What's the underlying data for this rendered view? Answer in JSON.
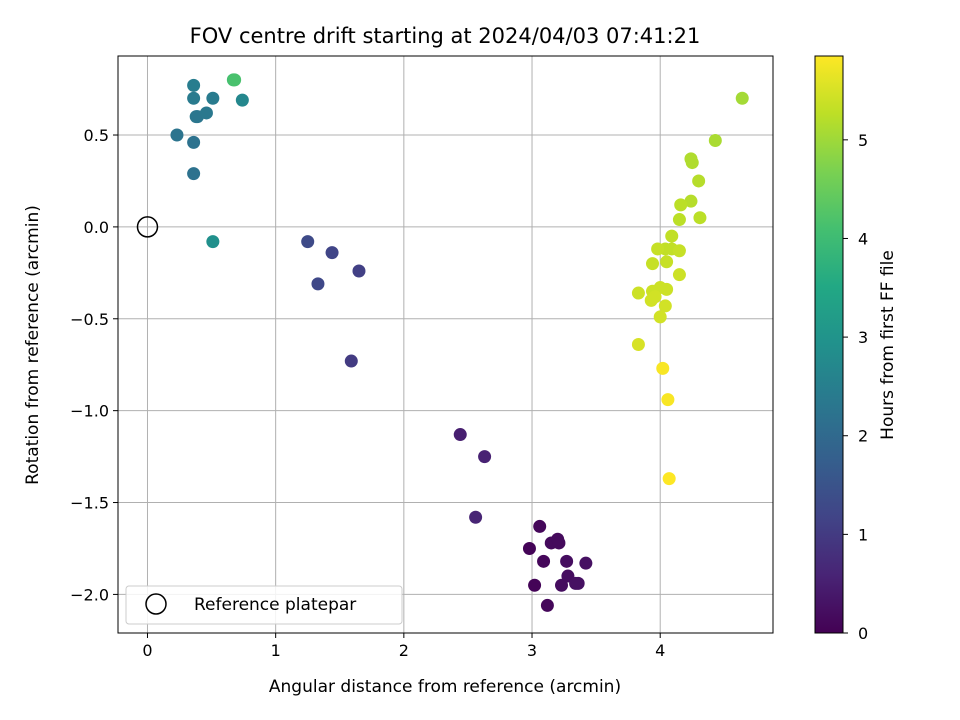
{
  "chart_data": {
    "type": "scatter",
    "title": "FOV centre drift starting at 2024/04/03 07:41:21",
    "xlabel": "Angular distance from reference (arcmin)",
    "ylabel": "Rotation from reference (arcmin)",
    "xlim": [
      -0.23,
      4.88
    ],
    "ylim": [
      -2.21,
      0.93
    ],
    "xticks": [
      0,
      1,
      2,
      3,
      4
    ],
    "xtick_labels": [
      "0",
      "1",
      "2",
      "3",
      "4"
    ],
    "yticks": [
      0.5,
      0.0,
      -0.5,
      -1.0,
      -1.5,
      -2.0
    ],
    "ytick_labels": [
      "0.5",
      "0.0",
      "−0.5",
      "−1.0",
      "−1.5",
      "−2.0"
    ],
    "grid": true,
    "legend": {
      "position": "lower-left",
      "entries": [
        "Reference platepar"
      ]
    },
    "reference_point": {
      "x": 0.0,
      "y": 0.0
    },
    "colorbar": {
      "label": "Hours from first FF file",
      "colormap": "viridis",
      "range": [
        0,
        5.85
      ],
      "ticks": [
        0,
        1,
        2,
        3,
        4,
        5
      ],
      "tick_labels": [
        "0",
        "1",
        "2",
        "3",
        "4",
        "5"
      ]
    },
    "points": [
      {
        "x": 2.98,
        "y": -1.75,
        "c": 0.05
      },
      {
        "x": 3.02,
        "y": -1.95,
        "c": 0.05
      },
      {
        "x": 3.06,
        "y": -1.63,
        "c": 0.1
      },
      {
        "x": 3.09,
        "y": -1.82,
        "c": 0.1
      },
      {
        "x": 3.12,
        "y": -2.06,
        "c": 0.1
      },
      {
        "x": 3.15,
        "y": -1.72,
        "c": 0.15
      },
      {
        "x": 3.2,
        "y": -1.7,
        "c": 0.15
      },
      {
        "x": 3.21,
        "y": -1.72,
        "c": 0.15
      },
      {
        "x": 3.23,
        "y": -1.95,
        "c": 0.2
      },
      {
        "x": 3.27,
        "y": -1.82,
        "c": 0.2
      },
      {
        "x": 3.28,
        "y": -1.9,
        "c": 0.2
      },
      {
        "x": 3.34,
        "y": -1.94,
        "c": 0.25
      },
      {
        "x": 3.36,
        "y": -1.94,
        "c": 0.25
      },
      {
        "x": 3.42,
        "y": -1.83,
        "c": 0.25
      },
      {
        "x": 2.44,
        "y": -1.13,
        "c": 0.5
      },
      {
        "x": 2.63,
        "y": -1.25,
        "c": 0.55
      },
      {
        "x": 2.56,
        "y": -1.58,
        "c": 0.6
      },
      {
        "x": 1.59,
        "y": -0.73,
        "c": 1.0
      },
      {
        "x": 1.65,
        "y": -0.24,
        "c": 1.1
      },
      {
        "x": 1.44,
        "y": -0.14,
        "c": 1.2
      },
      {
        "x": 1.33,
        "y": -0.31,
        "c": 1.25
      },
      {
        "x": 1.25,
        "y": -0.08,
        "c": 1.3
      },
      {
        "x": 0.36,
        "y": 0.29,
        "c": 2.2
      },
      {
        "x": 0.36,
        "y": 0.46,
        "c": 2.2
      },
      {
        "x": 0.23,
        "y": 0.5,
        "c": 2.25
      },
      {
        "x": 0.38,
        "y": 0.6,
        "c": 2.3
      },
      {
        "x": 0.39,
        "y": 0.6,
        "c": 2.3
      },
      {
        "x": 0.46,
        "y": 0.62,
        "c": 2.35
      },
      {
        "x": 0.51,
        "y": 0.7,
        "c": 2.4
      },
      {
        "x": 0.36,
        "y": 0.7,
        "c": 2.4
      },
      {
        "x": 0.36,
        "y": 0.77,
        "c": 2.45
      },
      {
        "x": 0.74,
        "y": 0.69,
        "c": 2.7
      },
      {
        "x": 0.51,
        "y": -0.08,
        "c": 2.9
      },
      {
        "x": 0.67,
        "y": 0.8,
        "c": 4.1
      },
      {
        "x": 0.68,
        "y": 0.8,
        "c": 4.15
      },
      {
        "x": 4.64,
        "y": 0.7,
        "c": 5.05
      },
      {
        "x": 4.43,
        "y": 0.47,
        "c": 5.1
      },
      {
        "x": 4.24,
        "y": 0.37,
        "c": 5.15
      },
      {
        "x": 4.25,
        "y": 0.35,
        "c": 5.15
      },
      {
        "x": 4.3,
        "y": 0.25,
        "c": 5.2
      },
      {
        "x": 4.24,
        "y": 0.14,
        "c": 5.2
      },
      {
        "x": 4.16,
        "y": 0.12,
        "c": 5.25
      },
      {
        "x": 4.15,
        "y": 0.04,
        "c": 5.25
      },
      {
        "x": 4.31,
        "y": 0.05,
        "c": 5.25
      },
      {
        "x": 4.09,
        "y": -0.05,
        "c": 5.3
      },
      {
        "x": 4.04,
        "y": -0.12,
        "c": 5.3
      },
      {
        "x": 4.09,
        "y": -0.12,
        "c": 5.3
      },
      {
        "x": 3.98,
        "y": -0.12,
        "c": 5.35
      },
      {
        "x": 4.15,
        "y": -0.13,
        "c": 5.35
      },
      {
        "x": 4.05,
        "y": -0.19,
        "c": 5.35
      },
      {
        "x": 3.94,
        "y": -0.2,
        "c": 5.35
      },
      {
        "x": 4.15,
        "y": -0.26,
        "c": 5.4
      },
      {
        "x": 4.0,
        "y": -0.33,
        "c": 5.4
      },
      {
        "x": 4.05,
        "y": -0.34,
        "c": 5.4
      },
      {
        "x": 3.94,
        "y": -0.35,
        "c": 5.4
      },
      {
        "x": 3.83,
        "y": -0.36,
        "c": 5.4
      },
      {
        "x": 3.96,
        "y": -0.38,
        "c": 5.45
      },
      {
        "x": 3.93,
        "y": -0.4,
        "c": 5.45
      },
      {
        "x": 4.04,
        "y": -0.43,
        "c": 5.45
      },
      {
        "x": 4.0,
        "y": -0.49,
        "c": 5.45
      },
      {
        "x": 3.83,
        "y": -0.64,
        "c": 5.5
      },
      {
        "x": 4.02,
        "y": -0.77,
        "c": 5.8
      },
      {
        "x": 4.06,
        "y": -0.94,
        "c": 5.8
      },
      {
        "x": 4.07,
        "y": -1.37,
        "c": 5.85
      }
    ]
  }
}
